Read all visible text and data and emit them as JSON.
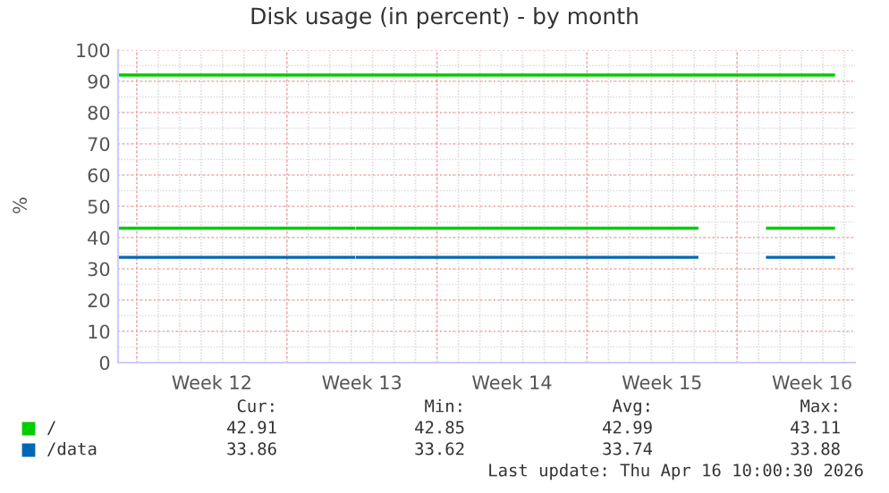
{
  "chart_data": {
    "type": "line",
    "title": "Disk usage (in percent) - by month",
    "ylabel": "%",
    "xlim": [
      "2026-03-15T03:00",
      "2026-04-18T12:00"
    ],
    "xticks": [
      {
        "value": "2026-03-16",
        "label": null
      },
      {
        "value": "2026-03-19T12:00",
        "label": "Week 12"
      },
      {
        "value": "2026-03-23",
        "label": null
      },
      {
        "value": "2026-03-26T12:00",
        "label": "Week 13"
      },
      {
        "value": "2026-03-30",
        "label": null
      },
      {
        "value": "2026-04-02T12:00",
        "label": "Week 14"
      },
      {
        "value": "2026-04-06",
        "label": null
      },
      {
        "value": "2026-04-09T12:00",
        "label": "Week 15"
      },
      {
        "value": "2026-04-13",
        "label": null
      },
      {
        "value": "2026-04-16T12:00",
        "label": "Week 16"
      }
    ],
    "ylim": [
      0,
      100
    ],
    "yticks": [
      0,
      10,
      20,
      30,
      40,
      50,
      60,
      70,
      80,
      90,
      100
    ],
    "grid": true,
    "legend": "bottom",
    "series": [
      {
        "color": "#00cc00",
        "x": [
          "2026-03-15T04:00",
          "2026-04-17T12:00"
        ],
        "values": [
          92,
          92
        ]
      },
      {
        "name": "/",
        "color": "#00cc00",
        "x": [
          "2026-03-15T04:00",
          "2026-03-26T03:00",
          "2026-03-26T05:00",
          "2026-03-26T07:00",
          "2026-04-11T03:00",
          "2026-04-12T12:00",
          "2026-04-14T10:00",
          "2026-04-17T12:00"
        ],
        "values": [
          43,
          43,
          null,
          43,
          43,
          null,
          43,
          43
        ]
      },
      {
        "name": "/data",
        "color": "#0066b3",
        "x": [
          "2026-03-15T04:00",
          "2026-03-26T03:00",
          "2026-03-26T05:00",
          "2026-03-26T07:00",
          "2026-04-11T03:00",
          "2026-04-12T12:00",
          "2026-04-14T10:00",
          "2026-04-17T12:00"
        ],
        "values": [
          33.7,
          33.7,
          null,
          33.7,
          33.7,
          null,
          33.7,
          33.7
        ]
      }
    ],
    "annotations": [
      "Cur:",
      "Min:",
      "Avg:",
      "Max:",
      "42.91",
      "42.85",
      "42.99",
      "43.11",
      "33.86",
      "33.62",
      "33.74",
      "33.88",
      "Last update: Thu Apr 16 10:00:30 2026"
    ]
  }
}
